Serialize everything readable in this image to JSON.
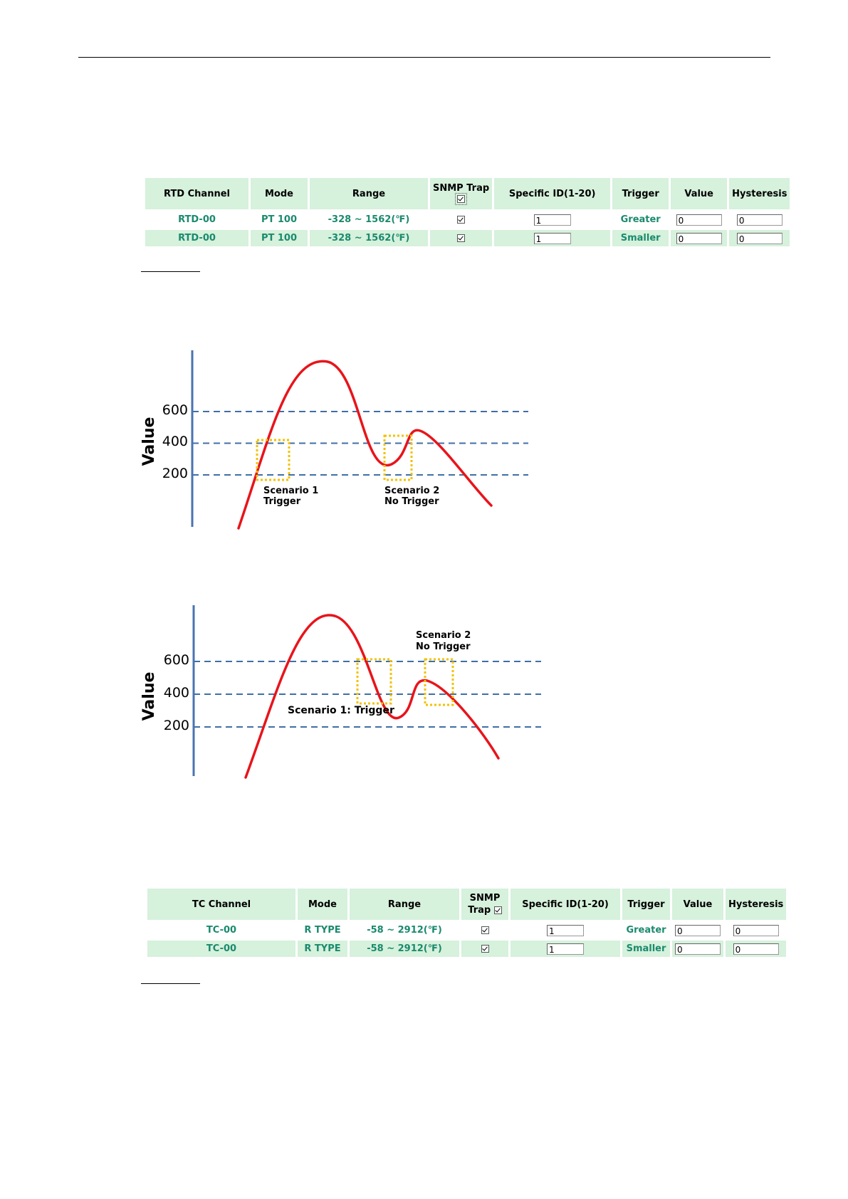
{
  "rtd_table": {
    "headers": {
      "channel": "RTD Channel",
      "mode": "Mode",
      "range": "Range",
      "snmp_trap": "SNMP Trap",
      "specific_id": "Specific ID(1-20)",
      "trigger": "Trigger",
      "value": "Value",
      "hysteresis": "Hysteresis"
    },
    "rows": [
      {
        "channel": "RTD-00",
        "mode": "PT 100",
        "range": "-328 ~ 1562(℉)",
        "specific_id": "1",
        "trigger": "Greater",
        "value": "0",
        "hysteresis": "0"
      },
      {
        "channel": "RTD-00",
        "mode": "PT 100",
        "range": "-328 ~ 1562(℉)",
        "specific_id": "1",
        "trigger": "Smaller",
        "value": "0",
        "hysteresis": "0"
      }
    ]
  },
  "tc_table": {
    "headers": {
      "channel": "TC Channel",
      "mode": "Mode",
      "range": "Range",
      "snmp": "SNMP",
      "trap": "Trap",
      "specific_id": "Specific ID(1-20)",
      "trigger": "Trigger",
      "value": "Value",
      "hysteresis": "Hysteresis"
    },
    "rows": [
      {
        "channel": "TC-00",
        "mode": "R TYPE",
        "range": "-58 ~ 2912(℉)",
        "specific_id": "1",
        "trigger": "Greater",
        "value": "0",
        "hysteresis": "0"
      },
      {
        "channel": "TC-00",
        "mode": "R TYPE",
        "range": "-58 ~ 2912(℉)",
        "specific_id": "1",
        "trigger": "Smaller",
        "value": "0",
        "hysteresis": "0"
      }
    ]
  },
  "chart_data": [
    {
      "type": "line",
      "ylabel": "Value",
      "yticks": [
        200,
        400,
        600
      ],
      "threshold_lines": [
        200,
        400,
        600
      ],
      "curve_color": "#e8141b",
      "threshold_color": "#3f6fa6",
      "axis_color": "#4a73b0",
      "box_color": "#f2c200",
      "annotations": [
        {
          "line1": "Scenario 1",
          "line2": "Trigger"
        },
        {
          "line1": "Scenario 2",
          "line2": "No Trigger"
        }
      ]
    },
    {
      "type": "line",
      "ylabel": "Value",
      "yticks": [
        200,
        400,
        600
      ],
      "threshold_lines": [
        200,
        400,
        600
      ],
      "curve_color": "#e8141b",
      "threshold_color": "#3f6fa6",
      "axis_color": "#4a73b0",
      "box_color": "#f2c200",
      "annotations": [
        {
          "line1": "Scenario 1: Trigger"
        },
        {
          "line1": "Scenario 2",
          "line2": "No Trigger"
        }
      ]
    }
  ]
}
